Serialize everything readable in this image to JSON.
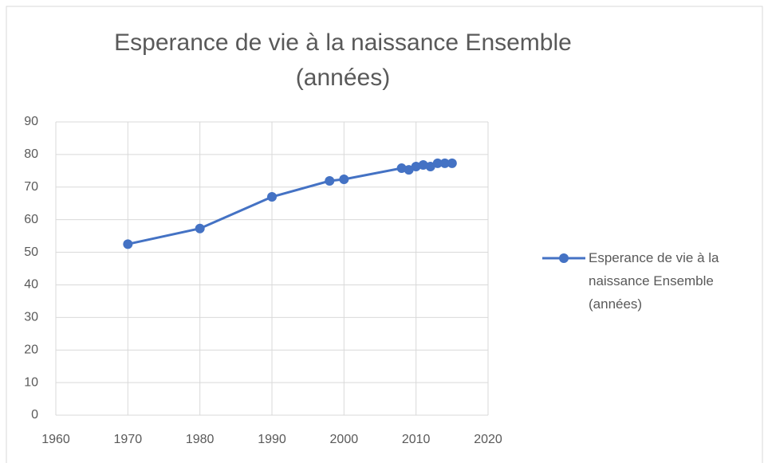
{
  "chart_data": {
    "type": "line",
    "title": "Esperance de vie à la naissance Ensemble (années)",
    "x": [
      1970,
      1980,
      1990,
      1998,
      2000,
      2008,
      2009,
      2010,
      2011,
      2012,
      2013,
      2014,
      2015
    ],
    "series": [
      {
        "name": "Esperance de vie à la naissance Ensemble (années)",
        "color": "#4472c4",
        "values": [
          52.5,
          57.3,
          67,
          71.9,
          72.4,
          75.8,
          75.3,
          76.3,
          76.8,
          76.3,
          77.3,
          77.3,
          77.3
        ]
      }
    ],
    "xlim": [
      1960,
      2020
    ],
    "xticks": [
      1960,
      1970,
      1980,
      1990,
      2000,
      2010,
      2020
    ],
    "ylim": [
      0,
      90
    ],
    "yticks": [
      0,
      10,
      20,
      30,
      40,
      50,
      60,
      70,
      80,
      90
    ],
    "grid": true,
    "legend": "right"
  }
}
